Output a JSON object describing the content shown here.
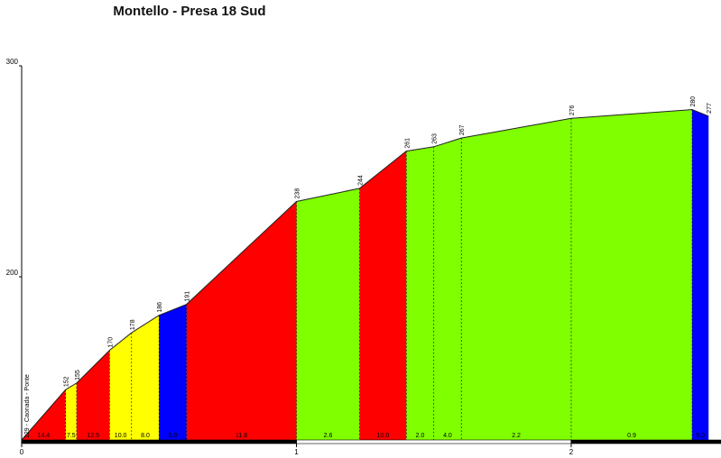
{
  "chart_data": {
    "type": "area",
    "title": "Montello - Presa 18 Sud",
    "xlim": [
      0,
      2.55
    ],
    "ylim": [
      129,
      300
    ],
    "y_ticks": [
      {
        "value": 300,
        "label": "300"
      },
      {
        "value": 200,
        "label": "200"
      }
    ],
    "x_ticks": [
      {
        "value": 0,
        "label": "0"
      },
      {
        "value": 1,
        "label": "1"
      },
      {
        "value": 2,
        "label": "2"
      }
    ],
    "start_label": "129 - Caonada - Ponte",
    "points": [
      {
        "km": 0.0,
        "alt": 129,
        "label": ""
      },
      {
        "km": 0.16,
        "alt": 152,
        "label": "152"
      },
      {
        "km": 0.2,
        "alt": 155,
        "label": "155"
      },
      {
        "km": 0.32,
        "alt": 170,
        "label": "170"
      },
      {
        "km": 0.4,
        "alt": 178,
        "label": "178"
      },
      {
        "km": 0.5,
        "alt": 186,
        "label": "186"
      },
      {
        "km": 0.6,
        "alt": 191,
        "label": "191"
      },
      {
        "km": 1.0,
        "alt": 238,
        "label": "238"
      },
      {
        "km": 1.23,
        "alt": 244,
        "label": "244"
      },
      {
        "km": 1.4,
        "alt": 261,
        "label": "261"
      },
      {
        "km": 1.5,
        "alt": 263,
        "label": "263"
      },
      {
        "km": 1.6,
        "alt": 267,
        "label": "267"
      },
      {
        "km": 2.0,
        "alt": 276,
        "label": "276"
      },
      {
        "km": 2.44,
        "alt": 280,
        "label": "280"
      },
      {
        "km": 2.5,
        "alt": 277,
        "label": "277"
      }
    ],
    "segments": [
      {
        "start": 0.0,
        "end": 0.16,
        "gradient": "14.4",
        "color": "#ff0000"
      },
      {
        "start": 0.16,
        "end": 0.2,
        "gradient": "7.5",
        "color": "#ffff00"
      },
      {
        "start": 0.2,
        "end": 0.32,
        "gradient": "12.5",
        "color": "#ff0000"
      },
      {
        "start": 0.32,
        "end": 0.4,
        "gradient": "10.0",
        "color": "#ffff00"
      },
      {
        "start": 0.4,
        "end": 0.5,
        "gradient": "8.0",
        "color": "#ffff00"
      },
      {
        "start": 0.5,
        "end": 0.6,
        "gradient": "5.0",
        "color": "#0000ff"
      },
      {
        "start": 0.6,
        "end": 1.0,
        "gradient": "11.8",
        "color": "#ff0000"
      },
      {
        "start": 1.0,
        "end": 1.23,
        "gradient": "2.6",
        "color": "#80ff00"
      },
      {
        "start": 1.23,
        "end": 1.4,
        "gradient": "10.0",
        "color": "#ff0000"
      },
      {
        "start": 1.4,
        "end": 1.5,
        "gradient": "2.0",
        "color": "#80ff00"
      },
      {
        "start": 1.5,
        "end": 1.6,
        "gradient": "4.0",
        "color": "#80ff00"
      },
      {
        "start": 1.6,
        "end": 2.0,
        "gradient": "2.2",
        "color": "#80ff00"
      },
      {
        "start": 2.0,
        "end": 2.44,
        "gradient": "0.9",
        "color": "#80ff00"
      },
      {
        "start": 2.44,
        "end": 2.5,
        "gradient": "5.0",
        "color": "#0000ff"
      }
    ]
  }
}
